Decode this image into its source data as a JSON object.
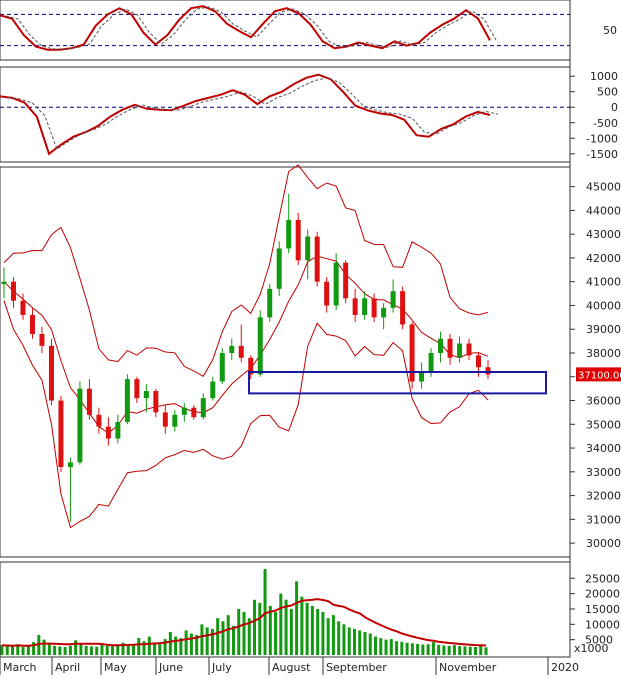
{
  "chart_data": [
    {
      "type": "line",
      "panel": "stochastic",
      "y_tick_labels": [
        "50"
      ],
      "series": [
        {
          "values": [
            78,
            72,
            40,
            18,
            12,
            12,
            15,
            22,
            58,
            80,
            92,
            80,
            45,
            22,
            40,
            70,
            92,
            96,
            86,
            62,
            48,
            36,
            62,
            86,
            92,
            82,
            60,
            28,
            15,
            18,
            26,
            20,
            15,
            28,
            20,
            25,
            45,
            60,
            72,
            88,
            72,
            30
          ]
        }
      ],
      "reference_lines": [
        80,
        20
      ]
    },
    {
      "type": "line",
      "panel": "macd",
      "ylim": [
        -1700,
        1200
      ],
      "y_tick_labels": [
        "1000",
        "500",
        "0",
        "-500",
        "-1000",
        "-1500"
      ],
      "series": [
        {
          "values": [
            350,
            300,
            150,
            -300,
            -1500,
            -1200,
            -950,
            -800,
            -600,
            -300,
            -80,
            80,
            -50,
            -80,
            -100,
            50,
            200,
            300,
            400,
            550,
            400,
            100,
            350,
            500,
            750,
            950,
            1050,
            900,
            500,
            50,
            -100,
            -200,
            -250,
            -400,
            -900,
            -950,
            -700,
            -550,
            -300,
            -150,
            -250
          ]
        }
      ],
      "zero_line": true
    },
    {
      "type": "candlestick",
      "panel": "price",
      "ylim": [
        29500,
        45700
      ],
      "y_tick_labels": [
        "45000",
        "44000",
        "43000",
        "42000",
        "41000",
        "40000",
        "39000",
        "38000",
        "37000",
        "36000",
        "35000",
        "34000",
        "33000",
        "32000",
        "31000",
        "30000"
      ],
      "last_price_label": "37100.00",
      "candles": [
        {
          "o": 40900,
          "h": 41600,
          "l": 40300,
          "c": 41000
        },
        {
          "o": 41000,
          "h": 41200,
          "l": 39900,
          "c": 40200
        },
        {
          "o": 40200,
          "h": 40500,
          "l": 39400,
          "c": 39600
        },
        {
          "o": 39600,
          "h": 39900,
          "l": 38600,
          "c": 38800
        },
        {
          "o": 38800,
          "h": 39100,
          "l": 38000,
          "c": 38300
        },
        {
          "o": 38300,
          "h": 38600,
          "l": 35800,
          "c": 36000
        },
        {
          "o": 36000,
          "h": 36200,
          "l": 33000,
          "c": 33200
        },
        {
          "o": 33200,
          "h": 33600,
          "l": 30900,
          "c": 33400
        },
        {
          "o": 33400,
          "h": 36800,
          "l": 33300,
          "c": 36500
        },
        {
          "o": 36500,
          "h": 36900,
          "l": 35200,
          "c": 35400
        },
        {
          "o": 35400,
          "h": 35700,
          "l": 34600,
          "c": 34900
        },
        {
          "o": 34900,
          "h": 35300,
          "l": 34100,
          "c": 34400
        },
        {
          "o": 34400,
          "h": 35400,
          "l": 34200,
          "c": 35100
        },
        {
          "o": 35100,
          "h": 37100,
          "l": 35000,
          "c": 36900
        },
        {
          "o": 36900,
          "h": 37000,
          "l": 35900,
          "c": 36100
        },
        {
          "o": 36100,
          "h": 36700,
          "l": 35500,
          "c": 36400
        },
        {
          "o": 36400,
          "h": 36500,
          "l": 35300,
          "c": 35500
        },
        {
          "o": 35500,
          "h": 35800,
          "l": 34600,
          "c": 34900
        },
        {
          "o": 34900,
          "h": 35600,
          "l": 34700,
          "c": 35400
        },
        {
          "o": 35400,
          "h": 35900,
          "l": 35100,
          "c": 35700
        },
        {
          "o": 35700,
          "h": 35800,
          "l": 35200,
          "c": 35300
        },
        {
          "o": 35300,
          "h": 36300,
          "l": 35200,
          "c": 36100
        },
        {
          "o": 36100,
          "h": 37000,
          "l": 36000,
          "c": 36800
        },
        {
          "o": 36800,
          "h": 38200,
          "l": 36700,
          "c": 38000
        },
        {
          "o": 38000,
          "h": 38600,
          "l": 37700,
          "c": 38300
        },
        {
          "o": 38300,
          "h": 39200,
          "l": 37600,
          "c": 37800
        },
        {
          "o": 37800,
          "h": 37900,
          "l": 36900,
          "c": 37100
        },
        {
          "o": 37100,
          "h": 39800,
          "l": 37000,
          "c": 39500
        },
        {
          "o": 39500,
          "h": 40900,
          "l": 39300,
          "c": 40700
        },
        {
          "o": 40700,
          "h": 42700,
          "l": 40400,
          "c": 42400
        },
        {
          "o": 42400,
          "h": 44700,
          "l": 42200,
          "c": 43600
        },
        {
          "o": 43600,
          "h": 43900,
          "l": 41700,
          "c": 41900
        },
        {
          "o": 41900,
          "h": 43200,
          "l": 41100,
          "c": 42900
        },
        {
          "o": 42900,
          "h": 43100,
          "l": 40800,
          "c": 41000
        },
        {
          "o": 41000,
          "h": 41200,
          "l": 39700,
          "c": 40000
        },
        {
          "o": 40000,
          "h": 42200,
          "l": 39800,
          "c": 41800
        },
        {
          "o": 41800,
          "h": 41900,
          "l": 40100,
          "c": 40300
        },
        {
          "o": 40300,
          "h": 40700,
          "l": 39300,
          "c": 39600
        },
        {
          "o": 39600,
          "h": 40600,
          "l": 39400,
          "c": 40300
        },
        {
          "o": 40300,
          "h": 40500,
          "l": 39300,
          "c": 39500
        },
        {
          "o": 39500,
          "h": 40100,
          "l": 39000,
          "c": 39900
        },
        {
          "o": 39900,
          "h": 41100,
          "l": 39700,
          "c": 40600
        },
        {
          "o": 40600,
          "h": 40800,
          "l": 39000,
          "c": 39200
        },
        {
          "o": 39200,
          "h": 39300,
          "l": 36500,
          "c": 36800
        },
        {
          "o": 36800,
          "h": 37600,
          "l": 36500,
          "c": 37200
        },
        {
          "o": 37200,
          "h": 38200,
          "l": 37000,
          "c": 38000
        },
        {
          "o": 38000,
          "h": 38900,
          "l": 37600,
          "c": 38600
        },
        {
          "o": 38600,
          "h": 38800,
          "l": 37500,
          "c": 37800
        },
        {
          "o": 37800,
          "h": 38700,
          "l": 37600,
          "c": 38400
        },
        {
          "o": 38400,
          "h": 38600,
          "l": 37700,
          "c": 37900
        },
        {
          "o": 37900,
          "h": 38000,
          "l": 37000,
          "c": 37400
        },
        {
          "o": 37400,
          "h": 37700,
          "l": 36900,
          "c": 37100
        }
      ]
    },
    {
      "type": "bar",
      "panel": "volume",
      "ylim": [
        0,
        29000
      ],
      "y_tick_labels": [
        "25000",
        "20000",
        "15000",
        "10000",
        "5000"
      ],
      "unit_label": "x1000",
      "values": [
        3200,
        3000,
        2800,
        3500,
        2600,
        3000,
        4200,
        6500,
        5000,
        3500,
        3000,
        2800,
        2600,
        3000,
        4800,
        3500,
        3000,
        2800,
        2700,
        3500,
        3000,
        2900,
        3300,
        4000,
        3500,
        3200,
        5500,
        4500,
        6000,
        3800,
        4200,
        5200,
        7500,
        6000,
        5500,
        8000,
        7000,
        6500,
        10000,
        9000,
        8500,
        12000,
        11000,
        13000,
        9500,
        15000,
        14000,
        12000,
        18000,
        17000,
        28000,
        16000,
        14000,
        20000,
        18000,
        15000,
        24000,
        19000,
        17000,
        16000,
        15000,
        14000,
        12000,
        13000,
        11000,
        10000,
        9000,
        8500,
        8000,
        7500,
        7000,
        6000,
        5500,
        5000,
        5200,
        4500,
        4300,
        4000,
        3800,
        3600,
        3400,
        3500,
        4200,
        3300,
        3100,
        3000,
        3200,
        2900,
        2800,
        2700,
        2600,
        3000,
        2500
      ]
    }
  ],
  "x_axis": {
    "labels": [
      "March",
      "April",
      "May",
      "June",
      "July",
      "August",
      "September",
      "November",
      "2020"
    ]
  }
}
